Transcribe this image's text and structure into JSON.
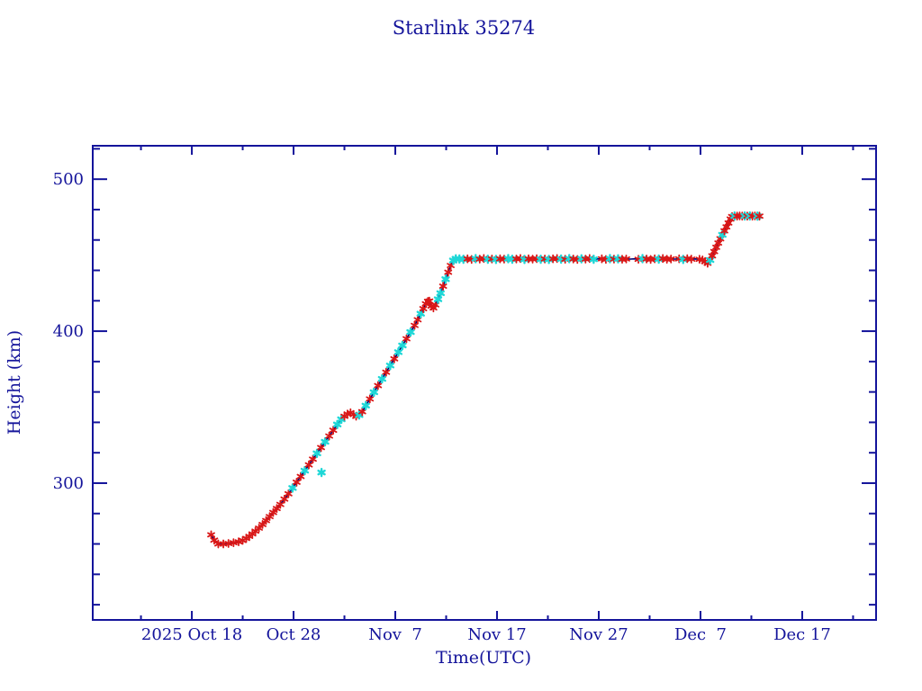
{
  "page": {
    "background": "#ffffff"
  },
  "chart_data": {
    "type": "line",
    "title": "Starlink 35274",
    "xlabel": "Time(UTC)",
    "ylabel": "Height (km)",
    "legend": "none",
    "grid": "off",
    "colors": {
      "axis": "#14149b",
      "text": "#14149b",
      "line": "#000070",
      "marker_red": "#d91818",
      "marker_cyan": "#1fd7d7"
    },
    "x_axis": {
      "units": "days relative to 2025 Oct 18 00:00 UTC",
      "min_day": -9.74,
      "max_day": 67.26,
      "major_tick_days": [
        0,
        10,
        20,
        30,
        40,
        50,
        60
      ],
      "major_tick_labels": [
        "2025 Oct 18",
        "Oct 28",
        "Nov  7",
        "Nov 17",
        "Nov 27",
        "Dec  7",
        "Dec 17"
      ],
      "minor_tick_days": [
        -5,
        5,
        15,
        25,
        35,
        45,
        55,
        65
      ]
    },
    "y_axis": {
      "units": "km",
      "min": 210,
      "max": 522,
      "major_ticks": [
        300,
        400,
        500
      ],
      "major_tick_labels": [
        "300",
        "400",
        "500"
      ],
      "minor_ticks": [
        220,
        240,
        260,
        280,
        320,
        340,
        360,
        380,
        420,
        440,
        460,
        480,
        520
      ]
    },
    "series_points": [
      [
        1.9,
        266,
        "r"
      ],
      [
        2.2,
        262.5,
        "r"
      ],
      [
        2.6,
        260,
        "r"
      ],
      [
        3.1,
        260,
        "r"
      ],
      [
        3.6,
        260.3,
        "r"
      ],
      [
        4.1,
        260.8,
        "r"
      ],
      [
        4.6,
        261.4,
        "r"
      ],
      [
        5.0,
        262.3,
        "r"
      ],
      [
        5.35,
        263.6,
        "r"
      ],
      [
        5.65,
        265,
        "r"
      ],
      [
        5.95,
        266.6,
        "r"
      ],
      [
        6.25,
        268.4,
        "r"
      ],
      [
        6.6,
        270.4,
        "r"
      ],
      [
        6.95,
        272.8,
        "r"
      ],
      [
        7.3,
        275.4,
        "r"
      ],
      [
        7.65,
        278,
        "r"
      ],
      [
        8.0,
        280.7,
        "r"
      ],
      [
        8.35,
        283.3,
        "r"
      ],
      [
        8.7,
        286,
        "r"
      ],
      [
        9.1,
        289.5,
        "r"
      ],
      [
        9.5,
        293,
        "r"
      ],
      [
        9.9,
        296.8,
        "c"
      ],
      [
        10.3,
        300.6,
        "r"
      ],
      [
        10.7,
        304.4,
        "r"
      ],
      [
        11.1,
        308.2,
        "c"
      ],
      [
        11.5,
        312,
        "r"
      ],
      [
        11.9,
        315.8,
        "r"
      ],
      [
        12.3,
        319.6,
        "c"
      ],
      [
        12.7,
        323.4,
        "r"
      ],
      [
        13.1,
        327.2,
        "c"
      ],
      [
        13.5,
        331,
        "r"
      ],
      [
        13.9,
        334.8,
        "r"
      ],
      [
        14.3,
        338.6,
        "c"
      ],
      [
        14.7,
        342,
        "c"
      ],
      [
        15.0,
        344,
        "r"
      ],
      [
        15.3,
        345.5,
        "r"
      ],
      [
        15.6,
        346.3,
        "r"
      ],
      [
        15.9,
        345.2,
        "r"
      ],
      [
        16.15,
        344,
        "r"
      ],
      [
        16.45,
        344.8,
        "c"
      ],
      [
        16.75,
        347,
        "r"
      ],
      [
        17.1,
        351,
        "c"
      ],
      [
        17.5,
        355.4,
        "r"
      ],
      [
        17.9,
        359.8,
        "c"
      ],
      [
        18.3,
        364.2,
        "r"
      ],
      [
        18.7,
        368.6,
        "c"
      ],
      [
        19.1,
        373,
        "r"
      ],
      [
        19.5,
        377.4,
        "c"
      ],
      [
        19.9,
        381.8,
        "r"
      ],
      [
        20.3,
        386.2,
        "c"
      ],
      [
        20.7,
        390.6,
        "c"
      ],
      [
        21.1,
        395,
        "r"
      ],
      [
        21.5,
        399.4,
        "c"
      ],
      [
        21.9,
        403.8,
        "r"
      ],
      [
        22.2,
        407.5,
        "r"
      ],
      [
        22.5,
        411.5,
        "c"
      ],
      [
        22.75,
        414.8,
        "r"
      ],
      [
        23.0,
        418,
        "r"
      ],
      [
        23.2,
        419.6,
        "r"
      ],
      [
        23.35,
        419.8,
        "r"
      ],
      [
        23.55,
        416.5,
        "r"
      ],
      [
        23.75,
        415.3,
        "r"
      ],
      [
        23.95,
        417.3,
        "r"
      ],
      [
        24.2,
        421,
        "c"
      ],
      [
        24.45,
        425,
        "c"
      ],
      [
        24.7,
        429.6,
        "r"
      ],
      [
        24.95,
        434.2,
        "c"
      ],
      [
        25.2,
        438.8,
        "r"
      ],
      [
        25.45,
        443.2,
        "r"
      ],
      [
        25.7,
        446.5,
        "c"
      ],
      [
        25.95,
        447.6,
        "c"
      ],
      [
        26.3,
        447.5,
        "c"
      ],
      [
        26.7,
        447.3,
        "c"
      ],
      [
        27.1,
        447.6,
        "r"
      ],
      [
        27.5,
        447.2,
        "r"
      ],
      [
        27.9,
        447.7,
        "c"
      ],
      [
        28.3,
        447.4,
        "r"
      ],
      [
        28.7,
        447.8,
        "r"
      ],
      [
        29.1,
        447.3,
        "c"
      ],
      [
        29.5,
        447.5,
        "r"
      ],
      [
        29.9,
        447.2,
        "c"
      ],
      [
        30.3,
        447.6,
        "r"
      ],
      [
        30.7,
        447.4,
        "r"
      ],
      [
        31.1,
        447.7,
        "c"
      ],
      [
        31.5,
        447.3,
        "c"
      ],
      [
        31.9,
        447.5,
        "r"
      ],
      [
        32.3,
        447.8,
        "r"
      ],
      [
        32.7,
        447.2,
        "c"
      ],
      [
        33.1,
        447.6,
        "r"
      ],
      [
        33.5,
        447.4,
        "r"
      ],
      [
        33.9,
        447.7,
        "r"
      ],
      [
        34.3,
        447.3,
        "c"
      ],
      [
        34.7,
        447.5,
        "r"
      ],
      [
        35.1,
        447.2,
        "c"
      ],
      [
        35.5,
        447.6,
        "r"
      ],
      [
        35.9,
        447.8,
        "r"
      ],
      [
        36.3,
        447.4,
        "c"
      ],
      [
        36.7,
        447.3,
        "r"
      ],
      [
        37.1,
        447.7,
        "c"
      ],
      [
        37.5,
        447.5,
        "r"
      ],
      [
        37.9,
        447.2,
        "r"
      ],
      [
        38.3,
        447.6,
        "c"
      ],
      [
        38.7,
        447.4,
        "r"
      ],
      [
        39.1,
        447.8,
        "r"
      ],
      [
        39.5,
        447.3,
        "c"
      ],
      [
        39.9,
        447.5,
        "n"
      ],
      [
        40.3,
        447.6,
        "r"
      ],
      [
        40.7,
        447.2,
        "r"
      ],
      [
        41.1,
        447.7,
        "c"
      ],
      [
        41.5,
        447.4,
        "r"
      ],
      [
        41.9,
        447.6,
        "c"
      ],
      [
        42.3,
        447.3,
        "r"
      ],
      [
        42.7,
        447.5,
        "r"
      ],
      [
        43.1,
        447.4,
        "n"
      ],
      [
        43.5,
        447.6,
        "n"
      ],
      [
        43.9,
        447.3,
        "r"
      ],
      [
        44.3,
        447.7,
        "c"
      ],
      [
        44.7,
        447.5,
        "r"
      ],
      [
        45.1,
        447.2,
        "r"
      ],
      [
        45.5,
        447.6,
        "r"
      ],
      [
        45.9,
        447.4,
        "c"
      ],
      [
        46.3,
        447.8,
        "r"
      ],
      [
        46.7,
        447.3,
        "r"
      ],
      [
        47.1,
        447.5,
        "r"
      ],
      [
        47.5,
        447.4,
        "n"
      ],
      [
        47.9,
        447.6,
        "r"
      ],
      [
        48.3,
        447.2,
        "c"
      ],
      [
        48.7,
        447.7,
        "r"
      ],
      [
        49.1,
        447.4,
        "r"
      ],
      [
        49.5,
        447.5,
        "n"
      ],
      [
        49.9,
        447.3,
        "r"
      ],
      [
        50.2,
        446.9,
        "r"
      ],
      [
        50.45,
        445.8,
        "r"
      ],
      [
        50.7,
        444.7,
        "r"
      ],
      [
        50.95,
        446.8,
        "c"
      ],
      [
        51.15,
        449.6,
        "r"
      ],
      [
        51.35,
        452.4,
        "r"
      ],
      [
        51.55,
        455.2,
        "r"
      ],
      [
        51.75,
        458,
        "r"
      ],
      [
        51.95,
        460.8,
        "r"
      ],
      [
        52.15,
        463.4,
        "c"
      ],
      [
        52.35,
        466,
        "r"
      ],
      [
        52.55,
        468.6,
        "r"
      ],
      [
        52.75,
        471.2,
        "r"
      ],
      [
        52.95,
        473.8,
        "r"
      ],
      [
        53.1,
        475.4,
        "r"
      ],
      [
        53.35,
        475.8,
        "c"
      ],
      [
        53.6,
        475.7,
        "r"
      ],
      [
        53.85,
        475.8,
        "r"
      ],
      [
        54.1,
        475.7,
        "r"
      ],
      [
        54.35,
        475.8,
        "c"
      ],
      [
        54.6,
        475.7,
        "r"
      ],
      [
        54.85,
        475.8,
        "c"
      ],
      [
        55.1,
        475.7,
        "r"
      ],
      [
        55.35,
        475.8,
        "r"
      ],
      [
        55.6,
        475.7,
        "c"
      ],
      [
        55.8,
        475.7,
        "r"
      ]
    ],
    "outlier_points": [
      [
        12.75,
        307,
        "c"
      ]
    ]
  }
}
